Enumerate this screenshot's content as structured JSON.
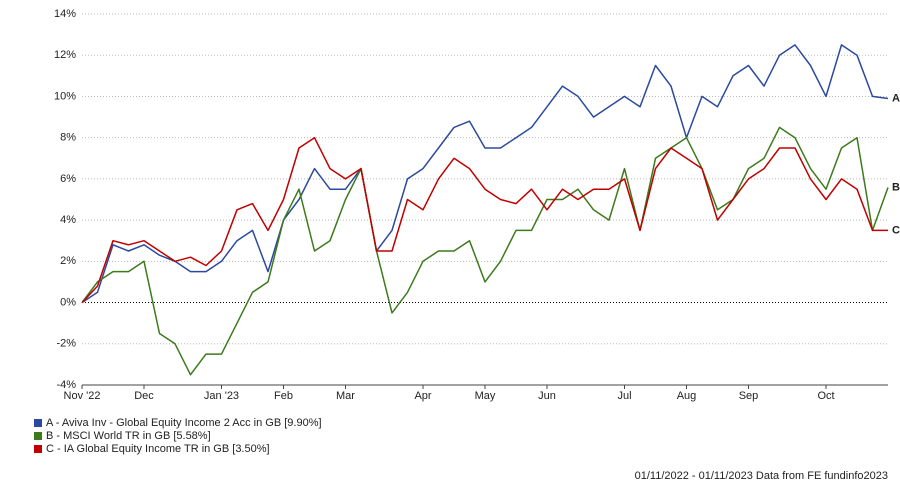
{
  "chart_data": {
    "type": "line",
    "categories": [
      "Nov '22",
      null,
      null,
      null,
      "Dec",
      null,
      null,
      null,
      null,
      "Jan '23",
      null,
      null,
      null,
      "Feb",
      null,
      null,
      null,
      "Mar",
      null,
      null,
      null,
      null,
      "Apr",
      null,
      null,
      null,
      "May",
      null,
      null,
      null,
      "Jun",
      null,
      null,
      null,
      null,
      "Jul",
      null,
      null,
      null,
      "Aug",
      null,
      null,
      null,
      "Sep",
      null,
      null,
      null,
      null,
      "Oct",
      null,
      null,
      null,
      null
    ],
    "series": [
      {
        "name": "A - Aviva Inv - Global Equity Income 2 Acc in GB [9.90%]",
        "end_label": "A",
        "color": "#2b4a9f",
        "values": [
          0,
          0.5,
          2.8,
          2.5,
          2.8,
          2.3,
          2.0,
          1.5,
          1.5,
          2.0,
          3.0,
          3.5,
          1.5,
          4.0,
          5.0,
          6.5,
          5.5,
          5.5,
          6.5,
          2.5,
          3.5,
          6.0,
          6.5,
          7.5,
          8.5,
          8.8,
          7.5,
          7.5,
          8.0,
          8.5,
          9.5,
          10.5,
          10.0,
          9.0,
          9.5,
          10.0,
          9.5,
          11.5,
          10.5,
          8.0,
          10.0,
          9.5,
          11.0,
          11.5,
          10.5,
          12.0,
          12.5,
          11.5,
          10.0,
          12.5,
          12.0,
          10.0,
          9.9
        ]
      },
      {
        "name": "B - MSCI World TR in GB [5.58%]",
        "end_label": "B",
        "color": "#3c7a1c",
        "values": [
          0,
          1.0,
          1.5,
          1.5,
          2.0,
          -1.5,
          -2.0,
          -3.5,
          -2.5,
          -2.5,
          -1.0,
          0.5,
          1.0,
          4.0,
          5.5,
          2.5,
          3.0,
          5.0,
          6.5,
          2.5,
          -0.5,
          0.5,
          2.0,
          2.5,
          2.5,
          3.0,
          1.0,
          2.0,
          3.5,
          3.5,
          5.0,
          5.0,
          5.5,
          4.5,
          4.0,
          6.5,
          3.5,
          7.0,
          7.5,
          8.0,
          6.5,
          4.5,
          5.0,
          6.5,
          7.0,
          8.5,
          8.0,
          6.5,
          5.5,
          7.5,
          8.0,
          3.5,
          5.58
        ]
      },
      {
        "name": "C - IA Global Equity Income TR in GB [3.50%]",
        "end_label": "C",
        "color": "#c00000",
        "values": [
          0,
          0.8,
          3.0,
          2.8,
          3.0,
          2.5,
          2.0,
          2.2,
          1.8,
          2.5,
          4.5,
          4.8,
          3.5,
          5.0,
          7.5,
          8.0,
          6.5,
          6.0,
          6.5,
          2.5,
          2.5,
          5.0,
          4.5,
          6.0,
          7.0,
          6.5,
          5.5,
          5.0,
          4.8,
          5.5,
          4.5,
          5.5,
          5.0,
          5.5,
          5.5,
          6.0,
          3.5,
          6.5,
          7.5,
          7.0,
          6.5,
          4.0,
          5.0,
          6.0,
          6.5,
          7.5,
          7.5,
          6.0,
          5.0,
          6.0,
          5.5,
          3.5,
          3.5
        ]
      }
    ],
    "ylim": [
      -4,
      14
    ],
    "yticks": [
      {
        "value": -4,
        "label": "-4%"
      },
      {
        "value": -2,
        "label": "-2%"
      },
      {
        "value": 0,
        "label": "0%"
      },
      {
        "value": 2,
        "label": "2%"
      },
      {
        "value": 4,
        "label": "4%"
      },
      {
        "value": 6,
        "label": "6%"
      },
      {
        "value": 8,
        "label": "8%"
      },
      {
        "value": 10,
        "label": "10%"
      },
      {
        "value": 12,
        "label": "12%"
      },
      {
        "value": 14,
        "label": "14%"
      }
    ],
    "grid": true,
    "footer": "01/11/2022 - 01/11/2023 Data from FE fundinfo2023"
  }
}
